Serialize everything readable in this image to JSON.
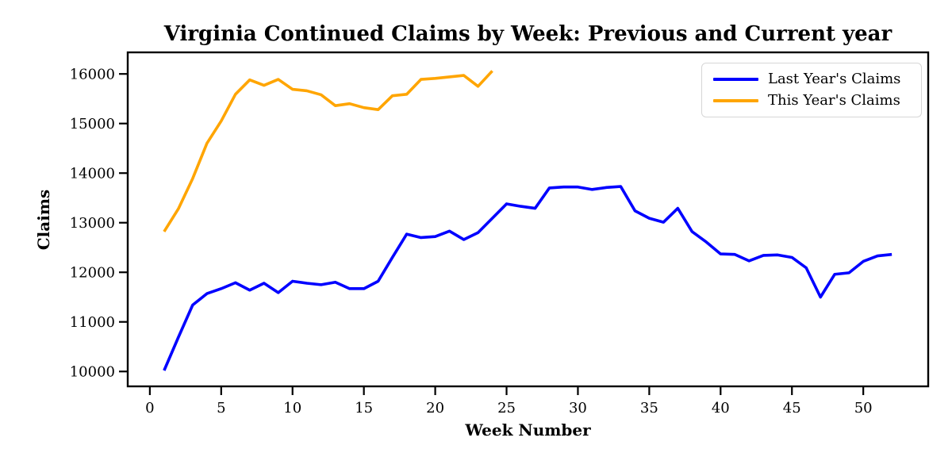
{
  "chart_data": {
    "type": "line",
    "title": "Virginia Continued Claims by Week: Previous and Current year",
    "xlabel": "Week Number",
    "ylabel": "Claims",
    "x_start_week": 1,
    "series": [
      {
        "name": "Last Year's Claims",
        "color": "#0000ff",
        "values": [
          10020,
          10690,
          11340,
          11570,
          11670,
          11790,
          11640,
          11780,
          11590,
          11820,
          11780,
          11750,
          11800,
          11670,
          11670,
          11820,
          12300,
          12770,
          12700,
          12720,
          12830,
          12660,
          12800,
          13090,
          13380,
          13330,
          13290,
          13700,
          13720,
          13720,
          13670,
          13710,
          13730,
          13240,
          13090,
          13010,
          13290,
          12820,
          12610,
          12370,
          12360,
          12230,
          12340,
          12350,
          12300,
          12090,
          11500,
          11960,
          11990,
          12220,
          12330,
          12360
        ]
      },
      {
        "name": "This Year's Claims",
        "color": "#ffa500",
        "values": [
          12820,
          13280,
          13890,
          14600,
          15050,
          15590,
          15880,
          15770,
          15890,
          15690,
          15660,
          15580,
          15360,
          15400,
          15320,
          15280,
          15560,
          15590,
          15890,
          15910,
          15940,
          15970,
          15750,
          16060
        ]
      }
    ],
    "xticks": [
      0,
      5,
      10,
      15,
      20,
      25,
      30,
      35,
      40,
      45,
      50
    ],
    "yticks": [
      10000,
      11000,
      12000,
      13000,
      14000,
      15000,
      16000
    ],
    "xlim": [
      -1.55,
      54.55
    ],
    "ylim": [
      9700,
      16435
    ],
    "grid": false,
    "legend_position": "upper right"
  }
}
